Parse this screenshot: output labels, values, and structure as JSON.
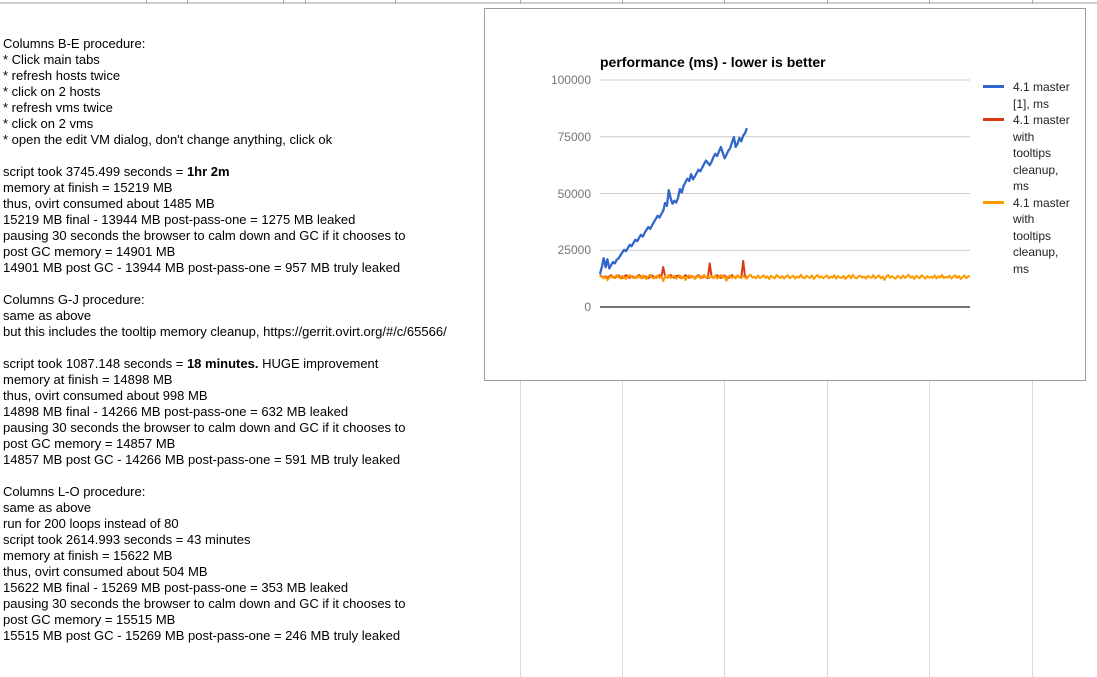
{
  "spreadsheet": {
    "top_row_ticks_x": [
      146,
      187,
      283,
      305,
      395,
      520,
      622,
      724,
      827,
      929,
      1032
    ],
    "column_gridlines_x": [
      520,
      622,
      724,
      827,
      929,
      1032
    ],
    "grid_color": "#d9d9d9"
  },
  "notes": {
    "lines": [
      {
        "segments": [
          {
            "text": "Columns B-E procedure:",
            "bold": false
          }
        ]
      },
      {
        "segments": [
          {
            "text": "* Click main tabs",
            "bold": false
          }
        ]
      },
      {
        "segments": [
          {
            "text": "* refresh hosts twice",
            "bold": false
          }
        ]
      },
      {
        "segments": [
          {
            "text": "* click on 2 hosts",
            "bold": false
          }
        ]
      },
      {
        "segments": [
          {
            "text": "* refresh vms twice",
            "bold": false
          }
        ]
      },
      {
        "segments": [
          {
            "text": "* click on 2 vms",
            "bold": false
          }
        ]
      },
      {
        "segments": [
          {
            "text": "* open the edit VM dialog, don't change anything, click ok",
            "bold": false
          }
        ]
      },
      {
        "segments": []
      },
      {
        "segments": [
          {
            "text": "script took 3745.499 seconds = ",
            "bold": false
          },
          {
            "text": "1hr 2m",
            "bold": true
          }
        ]
      },
      {
        "segments": [
          {
            "text": "memory at finish = 15219 MB",
            "bold": false
          }
        ]
      },
      {
        "segments": [
          {
            "text": "thus, ovirt consumed about 1485 MB",
            "bold": false
          }
        ]
      },
      {
        "segments": [
          {
            "text": "15219 MB final - 13944 MB post-pass-one = 1275 MB leaked",
            "bold": false
          }
        ]
      },
      {
        "segments": [
          {
            "text": "pausing 30 seconds the browser to calm down and GC if it chooses to",
            "bold": false
          }
        ]
      },
      {
        "segments": [
          {
            "text": "post GC memory = 14901 MB",
            "bold": false
          }
        ]
      },
      {
        "segments": [
          {
            "text": "14901 MB post GC - 13944 MB post-pass-one = 957 MB truly leaked",
            "bold": false
          }
        ]
      },
      {
        "segments": []
      },
      {
        "segments": [
          {
            "text": "Columns G-J procedure:",
            "bold": false
          }
        ]
      },
      {
        "segments": [
          {
            "text": "same as above",
            "bold": false
          }
        ]
      },
      {
        "segments": [
          {
            "text": "but this includes the tooltip memory cleanup, https://gerrit.ovirt.org/#/c/65566/",
            "bold": false
          }
        ]
      },
      {
        "segments": []
      },
      {
        "segments": [
          {
            "text": "script took 1087.148 seconds = ",
            "bold": false
          },
          {
            "text": "18 minutes.",
            "bold": true
          },
          {
            "text": " HUGE improvement",
            "bold": false
          }
        ]
      },
      {
        "segments": [
          {
            "text": "memory at finish = 14898 MB",
            "bold": false
          }
        ]
      },
      {
        "segments": [
          {
            "text": "thus, ovirt consumed about 998 MB",
            "bold": false
          }
        ]
      },
      {
        "segments": [
          {
            "text": "14898 MB final - 14266 MB post-pass-one = 632 MB leaked",
            "bold": false
          }
        ]
      },
      {
        "segments": [
          {
            "text": "pausing 30 seconds the browser to calm down and GC if it chooses to",
            "bold": false
          }
        ]
      },
      {
        "segments": [
          {
            "text": "post GC memory = 14857 MB",
            "bold": false
          }
        ]
      },
      {
        "segments": [
          {
            "text": "14857 MB post GC - 14266 MB post-pass-one = 591 MB truly leaked",
            "bold": false
          }
        ]
      },
      {
        "segments": []
      },
      {
        "segments": [
          {
            "text": "Columns L-O procedure:",
            "bold": false
          }
        ]
      },
      {
        "segments": [
          {
            "text": "same as above",
            "bold": false
          }
        ]
      },
      {
        "segments": [
          {
            "text": "run for 200 loops instead of 80",
            "bold": false
          }
        ]
      },
      {
        "segments": [
          {
            "text": "script took 2614.993 seconds = 43 minutes",
            "bold": false
          }
        ]
      },
      {
        "segments": [
          {
            "text": "memory at finish = 15622 MB",
            "bold": false
          }
        ]
      },
      {
        "segments": [
          {
            "text": "thus, ovirt consumed about 504 MB",
            "bold": false
          }
        ]
      },
      {
        "segments": [
          {
            "text": "15622 MB final - 15269 MB post-pass-one = 353 MB leaked",
            "bold": false
          }
        ]
      },
      {
        "segments": [
          {
            "text": "pausing 30 seconds the browser to calm down and GC if it chooses to",
            "bold": false
          }
        ]
      },
      {
        "segments": [
          {
            "text": "post GC memory = 15515 MB",
            "bold": false
          }
        ]
      },
      {
        "segments": [
          {
            "text": "15515 MB post GC - 15269 MB post-pass-one = 246 MB truly leaked",
            "bold": false
          }
        ]
      }
    ]
  },
  "chart": {
    "border_color": "#9e9e9e",
    "gridline_color": "#cccccc",
    "axis_line_color": "#424242",
    "tick_label_color": "#757575"
  },
  "chart_data": {
    "type": "line",
    "title": "performance (ms) - lower is better",
    "xlabel": "",
    "ylabel": "",
    "ylim": [
      0,
      100000
    ],
    "grid": true,
    "legend_position": "right",
    "x_point_count": 200,
    "yticks": [
      {
        "value": 0,
        "label": "0"
      },
      {
        "value": 25000,
        "label": "25000"
      },
      {
        "value": 50000,
        "label": "50000"
      },
      {
        "value": 75000,
        "label": "75000"
      },
      {
        "value": 100000,
        "label": "100000"
      }
    ],
    "series": [
      {
        "name": "4.1 master [1], ms",
        "color": "#3366cc",
        "values": [
          14500,
          17800,
          21500,
          17500,
          21000,
          17000,
          18500,
          19800,
          19200,
          20800,
          21500,
          22800,
          24000,
          25200,
          24600,
          26000,
          27400,
          26800,
          28300,
          29600,
          29000,
          30400,
          31800,
          31000,
          32600,
          34000,
          35200,
          34400,
          36000,
          37400,
          38800,
          40200,
          39400,
          41000,
          42400,
          45800,
          44600,
          51500,
          47800,
          45500,
          46800,
          46000,
          48200,
          52000,
          50500,
          53500,
          55000,
          56500,
          55500,
          58500,
          56200,
          57500,
          59000,
          60500,
          59800,
          61500,
          63000,
          64500,
          63500,
          62500,
          64000,
          66000,
          67500,
          66500,
          68500,
          70500,
          68000,
          65500,
          67000,
          68800,
          70000,
          72500,
          74800,
          70500,
          72000,
          74500,
          73000,
          75500,
          76500,
          78800
        ]
      },
      {
        "name": "4.1 master with tooltips cleanup, ms",
        "color": "#dc3912",
        "values": [
          14200,
          13400,
          13000,
          13600,
          12900,
          13500,
          14000,
          13200,
          12800,
          13500,
          13900,
          13100,
          12700,
          13400,
          14000,
          13300,
          12900,
          13600,
          13200,
          12800,
          13500,
          14100,
          13300,
          12900,
          13600,
          13100,
          12700,
          13400,
          13900,
          13200,
          12800,
          13500,
          14000,
          13300,
          17600,
          13600,
          12900,
          13400,
          14100,
          13200,
          12800,
          13500,
          13900,
          13100,
          12700,
          13400,
          14000,
          13300,
          12900,
          13600,
          13200,
          12800,
          13500,
          14100,
          13300,
          12900,
          13600,
          13100,
          12700,
          19200,
          13400,
          13000,
          13600,
          14000,
          13200,
          12800,
          13500,
          13900,
          13100,
          12700,
          13400,
          14000,
          13300,
          12900,
          13600,
          13200,
          12800,
          20300,
          13500,
          13100
        ]
      },
      {
        "name": "4.1 master with tooltips cleanup, ms",
        "color": "#ff9900",
        "values": [
          13800,
          13200,
          12600,
          13400,
          11800,
          12900,
          13600,
          12800,
          13300,
          14000,
          13100,
          12500,
          13700,
          13000,
          12400,
          13500,
          14100,
          13200,
          12700,
          13400,
          12900,
          13600,
          12600,
          13900,
          13100,
          12300,
          13500,
          14200,
          13000,
          12600,
          13300,
          13900,
          12800,
          13400,
          11400,
          13600,
          13000,
          14100,
          12700,
          13300,
          13800,
          12500,
          13200,
          13900,
          12800,
          13500,
          11900,
          13400,
          14000,
          12900,
          13600,
          12400,
          13100,
          13800,
          12600,
          13300,
          14200,
          12800,
          13500,
          12900,
          13600,
          12700,
          13900,
          12500,
          13200,
          14100,
          12900,
          13600,
          11600,
          13400,
          13900,
          12800,
          13500,
          12600,
          14000,
          13100,
          12700,
          13800,
          13000,
          12500,
          13700,
          14200,
          12900,
          13400,
          12600,
          13900,
          12700,
          13300,
          14000,
          12800,
          13500,
          12400,
          13800,
          13100,
          12600,
          14100,
          13300,
          12800,
          13600,
          12500,
          13400,
          14000,
          12700,
          13200,
          13800,
          12500,
          13500,
          12900,
          14200,
          13000,
          12600,
          13700,
          13200,
          12800,
          13900,
          12400,
          13400,
          14100,
          12900,
          13500,
          12700,
          13300,
          13900,
          12600,
          13400,
          12900,
          14000,
          12500,
          13600,
          13100,
          12800,
          13700,
          12400,
          13300,
          13900,
          12700,
          14200,
          13000,
          12600,
          13500,
          13800,
          12900,
          13400,
          12500,
          13700,
          13200,
          12800,
          14000,
          12600,
          13300,
          13900,
          12700,
          13500,
          11900,
          13400,
          14100,
          12800,
          13600,
          13000,
          12500,
          13700,
          13200,
          12600,
          13900,
          12800,
          13400,
          14200,
          12900,
          13500,
          12400,
          13800,
          13100,
          12700,
          14000,
          13300,
          12500,
          13600,
          12900,
          13400,
          12800,
          13900,
          12600,
          13500,
          13000,
          14100,
          12700,
          13300,
          12900,
          13800,
          12500,
          13400,
          14000,
          12800,
          13600,
          12400,
          13200,
          13900,
          12700,
          13500,
          13600
        ]
      }
    ],
    "legend": [
      {
        "color": "#3366cc",
        "lines": [
          "4.1 master",
          "[1], ms"
        ]
      },
      {
        "color": "#dc3912",
        "lines": [
          "4.1 master",
          "with",
          "tooltips",
          "cleanup,",
          "ms"
        ]
      },
      {
        "color": "#ff9900",
        "lines": [
          "4.1 master",
          "with",
          "tooltips",
          "cleanup,",
          "ms"
        ]
      }
    ]
  }
}
